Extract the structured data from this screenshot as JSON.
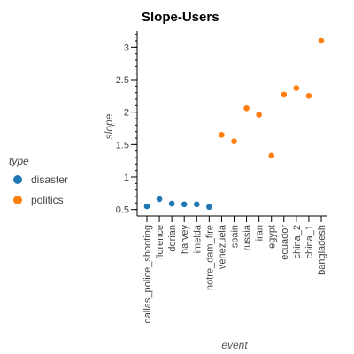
{
  "chart_data": {
    "type": "scatter",
    "title": "Slope-Users",
    "xlabel": "event",
    "ylabel": "slope",
    "categories": [
      "dallas_police_shooting",
      "florence",
      "dorian",
      "harvey",
      "imelda",
      "notre_dam_fire",
      "venezuela",
      "spain",
      "russia",
      "iran",
      "egypt",
      "ecuador",
      "china_2",
      "china_1",
      "bangladesh"
    ],
    "series": [
      {
        "name": "disaster",
        "color": "#1f77b4",
        "points": [
          {
            "x": "dallas_police_shooting",
            "y": 0.55
          },
          {
            "x": "florence",
            "y": 0.66
          },
          {
            "x": "dorian",
            "y": 0.59
          },
          {
            "x": "harvey",
            "y": 0.58
          },
          {
            "x": "imelda",
            "y": 0.58
          },
          {
            "x": "notre_dam_fire",
            "y": 0.54
          }
        ]
      },
      {
        "name": "politics",
        "color": "#ff7f0e",
        "points": [
          {
            "x": "venezuela",
            "y": 1.65
          },
          {
            "x": "spain",
            "y": 1.55
          },
          {
            "x": "russia",
            "y": 2.06
          },
          {
            "x": "iran",
            "y": 1.96
          },
          {
            "x": "egypt",
            "y": 1.33
          },
          {
            "x": "ecuador",
            "y": 2.27
          },
          {
            "x": "china_2",
            "y": 2.37
          },
          {
            "x": "china_1",
            "y": 2.25
          },
          {
            "x": "bangladesh",
            "y": 3.1
          }
        ]
      }
    ],
    "yticks": [
      0.5,
      1,
      1.5,
      2,
      2.5,
      3
    ],
    "ytick_labels": [
      "0.5",
      "1",
      "1.5",
      "2",
      "2.5",
      "3"
    ],
    "ylim": [
      0.4,
      3.25
    ],
    "legend": {
      "title": "type",
      "placement": "left",
      "entries": [
        "disaster",
        "politics"
      ]
    },
    "grid": false
  }
}
